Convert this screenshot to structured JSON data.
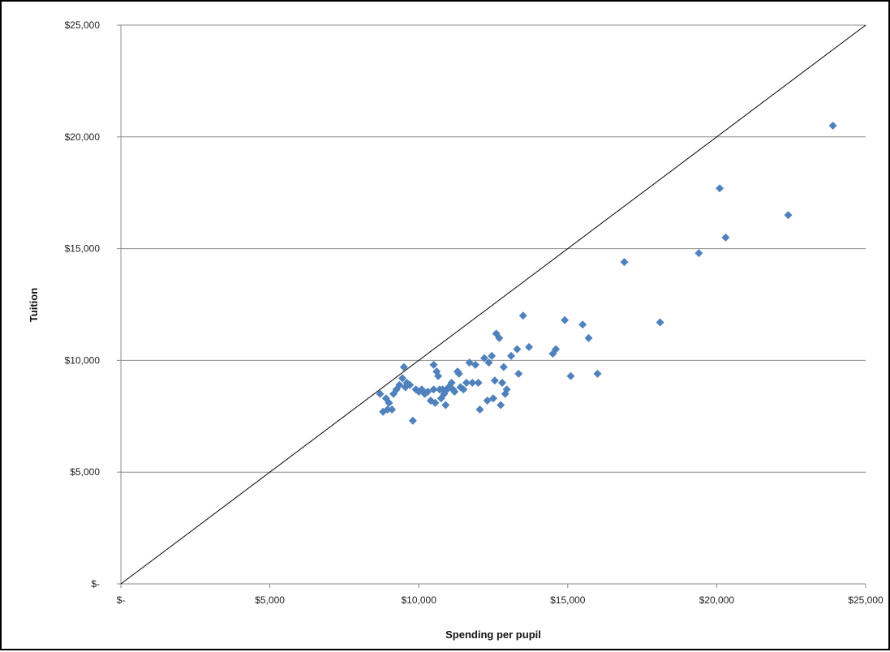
{
  "chart_data": {
    "type": "scatter",
    "title": "",
    "xlabel": "Spending per pupil",
    "ylabel": "Tuition",
    "xlim": [
      0,
      25000
    ],
    "ylim": [
      0,
      25000
    ],
    "x_ticks": [
      0,
      5000,
      10000,
      15000,
      20000,
      25000
    ],
    "x_tick_labels": [
      "$-",
      "$5,000",
      "$10,000",
      "$15,000",
      "$20,000",
      "$25,000"
    ],
    "y_ticks": [
      0,
      5000,
      10000,
      15000,
      20000,
      25000
    ],
    "y_tick_labels": [
      "$-",
      "$5,000",
      "$10,000",
      "$15,000",
      "$20,000",
      "$25,000"
    ],
    "grid": {
      "horizontal": true,
      "vertical": false
    },
    "legend": "none",
    "reference_line": {
      "from": [
        0,
        0
      ],
      "to": [
        25000,
        25000
      ],
      "color": "#000000"
    },
    "marker": {
      "shape": "diamond",
      "color": "#4F81BD"
    },
    "series": [
      {
        "points": [
          [
            8700,
            8500
          ],
          [
            8800,
            7700
          ],
          [
            8900,
            8300
          ],
          [
            8950,
            7800
          ],
          [
            9000,
            8100
          ],
          [
            9100,
            7800
          ],
          [
            9150,
            8500
          ],
          [
            9250,
            8700
          ],
          [
            9350,
            8900
          ],
          [
            9450,
            9200
          ],
          [
            9500,
            9700
          ],
          [
            9550,
            8800
          ],
          [
            9600,
            9000
          ],
          [
            9700,
            8900
          ],
          [
            9800,
            7300
          ],
          [
            9900,
            8700
          ],
          [
            10000,
            8600
          ],
          [
            10100,
            8700
          ],
          [
            10200,
            8500
          ],
          [
            10300,
            8600
          ],
          [
            10400,
            8200
          ],
          [
            10500,
            9800
          ],
          [
            10500,
            8700
          ],
          [
            10550,
            8100
          ],
          [
            10600,
            9500
          ],
          [
            10650,
            9300
          ],
          [
            10700,
            8700
          ],
          [
            10750,
            8300
          ],
          [
            10800,
            8700
          ],
          [
            10850,
            8500
          ],
          [
            10900,
            8000
          ],
          [
            10950,
            8700
          ],
          [
            11000,
            8800
          ],
          [
            11100,
            9000
          ],
          [
            11150,
            8700
          ],
          [
            11200,
            8600
          ],
          [
            11300,
            9500
          ],
          [
            11350,
            9400
          ],
          [
            11400,
            8800
          ],
          [
            11500,
            8700
          ],
          [
            11600,
            9000
          ],
          [
            11700,
            9900
          ],
          [
            11800,
            9000
          ],
          [
            11900,
            9800
          ],
          [
            12000,
            9000
          ],
          [
            12050,
            7800
          ],
          [
            12200,
            10100
          ],
          [
            12300,
            8200
          ],
          [
            12350,
            9900
          ],
          [
            12450,
            10200
          ],
          [
            12500,
            8300
          ],
          [
            12550,
            9100
          ],
          [
            12600,
            11200
          ],
          [
            12700,
            11000
          ],
          [
            12750,
            8000
          ],
          [
            12800,
            9000
          ],
          [
            12850,
            9700
          ],
          [
            12900,
            8500
          ],
          [
            12950,
            8700
          ],
          [
            13100,
            10200
          ],
          [
            13300,
            10500
          ],
          [
            13350,
            9400
          ],
          [
            13500,
            12000
          ],
          [
            13700,
            10600
          ],
          [
            14500,
            10300
          ],
          [
            14600,
            10500
          ],
          [
            14900,
            11800
          ],
          [
            15100,
            9300
          ],
          [
            15500,
            11600
          ],
          [
            15700,
            11000
          ],
          [
            16000,
            9400
          ],
          [
            16900,
            14400
          ],
          [
            18100,
            11700
          ],
          [
            19400,
            14800
          ],
          [
            20100,
            17700
          ],
          [
            20300,
            15500
          ],
          [
            22400,
            16500
          ],
          [
            23900,
            20500
          ]
        ]
      }
    ]
  }
}
